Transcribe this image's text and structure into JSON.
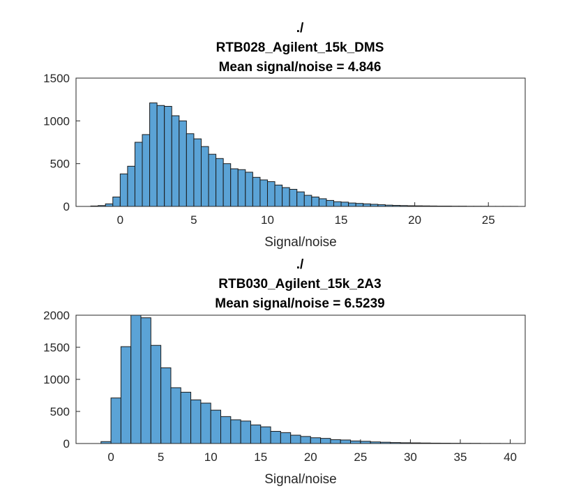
{
  "chart_data": [
    {
      "type": "bar",
      "title_lines": [
        "./",
        "RTB028_Agilent_15k_DMS",
        "Mean signal/noise = 4.846"
      ],
      "xlabel": "Signal/noise",
      "ylabel": "",
      "xlim": [
        -3,
        27.5
      ],
      "ylim": [
        0,
        1500
      ],
      "xticks": [
        0,
        5,
        10,
        15,
        20,
        25
      ],
      "yticks": [
        0,
        500,
        1000,
        1500
      ],
      "bin_width": 0.5,
      "bin_start": -2.0,
      "values": [
        5,
        10,
        30,
        110,
        380,
        470,
        750,
        840,
        1210,
        1180,
        1170,
        1060,
        1000,
        850,
        790,
        700,
        610,
        560,
        500,
        440,
        430,
        400,
        340,
        310,
        290,
        250,
        220,
        200,
        170,
        130,
        110,
        90,
        70,
        55,
        50,
        40,
        35,
        30,
        25,
        20,
        15,
        12,
        10,
        8,
        7,
        6,
        5,
        4,
        4,
        3,
        3,
        2,
        2,
        2,
        1,
        1,
        1,
        1
      ],
      "bar_color": "#5ba3d6",
      "grid": false
    },
    {
      "type": "bar",
      "title_lines": [
        "./",
        "RTB030_Agilent_15k_2A3",
        "Mean signal/noise = 6.5239"
      ],
      "xlabel": "Signal/noise",
      "ylabel": "",
      "xlim": [
        -3.5,
        41.5
      ],
      "ylim": [
        0,
        2000
      ],
      "xticks": [
        0,
        5,
        10,
        15,
        20,
        25,
        30,
        35,
        40
      ],
      "yticks": [
        0,
        500,
        1000,
        1500,
        2000
      ],
      "bin_width": 1,
      "bin_start": -1,
      "values": [
        30,
        710,
        1510,
        2040,
        1960,
        1530,
        1180,
        870,
        800,
        680,
        630,
        520,
        420,
        370,
        350,
        290,
        260,
        190,
        170,
        130,
        110,
        90,
        80,
        60,
        55,
        40,
        35,
        25,
        20,
        15,
        12,
        10,
        8,
        6,
        5,
        4,
        3,
        3,
        2,
        2,
        1
      ],
      "bar_color": "#5ba3d6",
      "grid": false
    }
  ]
}
